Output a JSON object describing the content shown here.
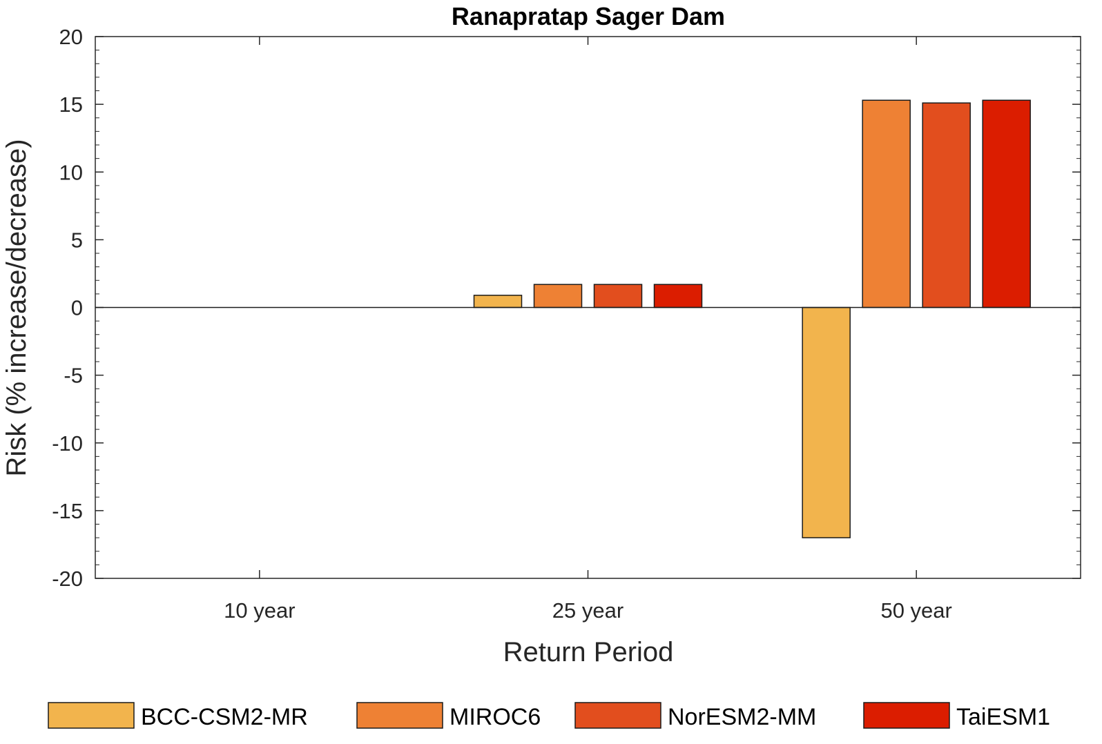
{
  "chart_data": {
    "type": "bar",
    "title": "Ranapratap Sager Dam",
    "xlabel": "Return Period",
    "ylabel": "Risk (% increase/decrease)",
    "categories": [
      "10 year",
      "25 year",
      "50 year"
    ],
    "ylim": [
      -20,
      20
    ],
    "yticks": [
      -20,
      -15,
      -10,
      -5,
      0,
      5,
      10,
      15,
      20
    ],
    "ytick_labels": [
      "-20",
      "-15",
      "-10",
      "-5",
      "0",
      "5",
      "10",
      "15",
      "20"
    ],
    "grid": false,
    "legend_placement": "bottom",
    "series": [
      {
        "name": "BCC-CSM2-MR",
        "color": "#F2B44D",
        "values": [
          0,
          0.9,
          -17.0
        ]
      },
      {
        "name": "MIROC6",
        "color": "#EE8134",
        "values": [
          0,
          1.7,
          15.3
        ]
      },
      {
        "name": "NorESM2-MM",
        "color": "#E24E1E",
        "values": [
          0,
          1.7,
          15.1
        ]
      },
      {
        "name": "TaiESM1",
        "color": "#DB1D00",
        "values": [
          0,
          1.7,
          15.3
        ]
      }
    ]
  }
}
